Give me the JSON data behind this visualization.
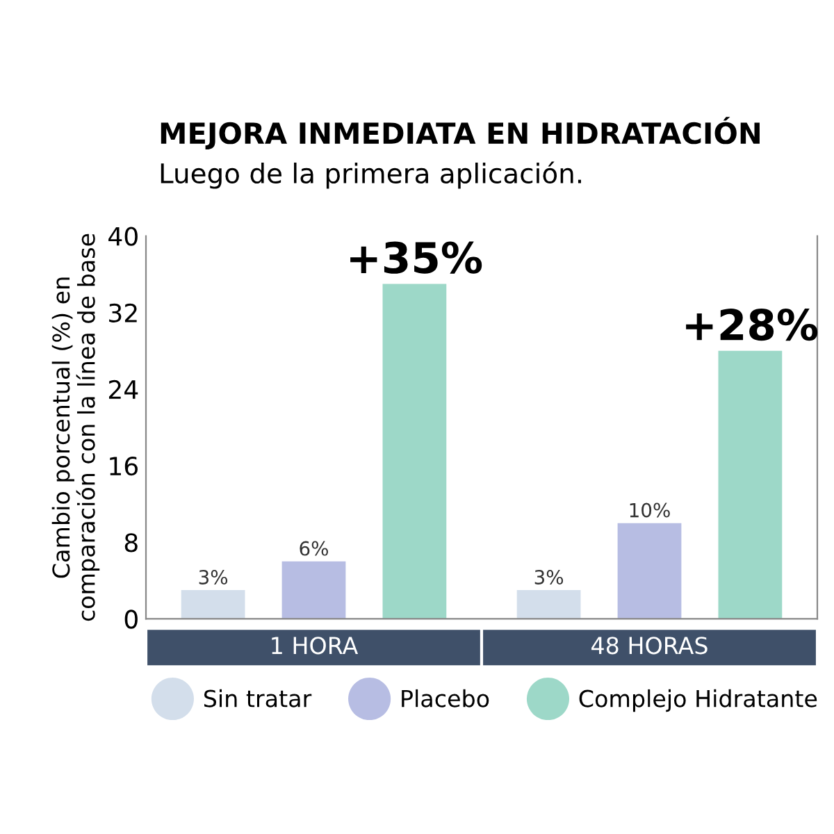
{
  "chart_data": {
    "type": "bar",
    "title": "MEJORA INMEDIATA EN HIDRATACIÓN",
    "subtitle": "Luego de la primera aplicación.",
    "ylabel": "Cambio porcentual (%) en\ncomparación con la línea de base",
    "categories": [
      "1 HORA",
      "48 HORAS"
    ],
    "series": [
      {
        "name": "Sin tratar",
        "color": "#d3deeb",
        "values": [
          3,
          3
        ],
        "value_labels": [
          "3%",
          "3%"
        ]
      },
      {
        "name": "Placebo",
        "color": "#b7bde3",
        "values": [
          6,
          10
        ],
        "value_labels": [
          "6%",
          "10%"
        ]
      },
      {
        "name": "Complejo Hidratante",
        "color": "#9dd8c8",
        "values": [
          35,
          28
        ],
        "value_labels": [
          "+35%",
          "+28%"
        ]
      }
    ],
    "ylim": [
      0,
      40
    ],
    "yticks": [
      0,
      8,
      16,
      24,
      32,
      40
    ],
    "grid": false,
    "legend": "bottom"
  }
}
